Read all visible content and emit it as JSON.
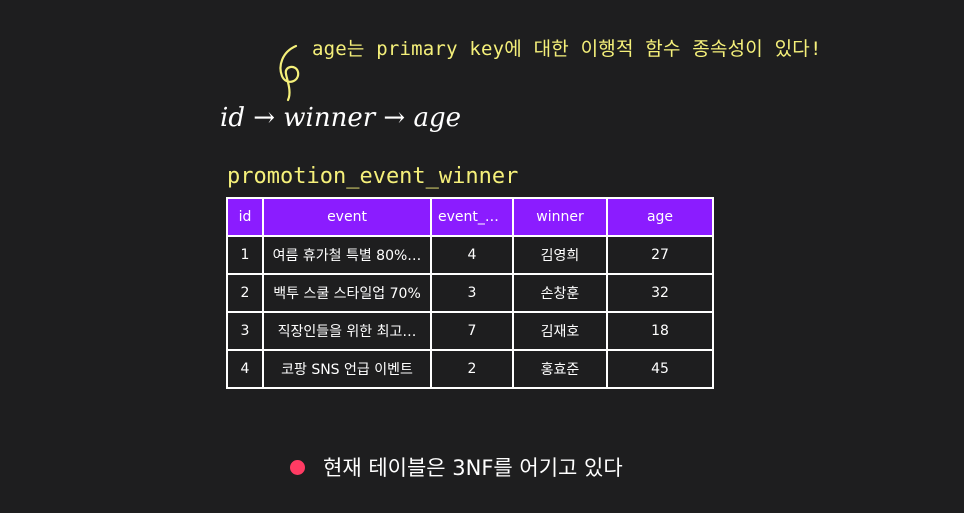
{
  "annotation": {
    "text": "age는 primary key에 대한 이행적 함수 종속성이 있다!",
    "color": "#f5f07a"
  },
  "formula": "id → winner → age",
  "table": {
    "title": "promotion_event_winner",
    "header_color": "#8b1cff",
    "columns": [
      "id",
      "event",
      "event_num",
      "winner",
      "age"
    ],
    "rows": [
      [
        "1",
        "여름 휴가철 특별 80%…",
        "4",
        "김영희",
        "27"
      ],
      [
        "2",
        "백투 스쿨 스타일업 70%",
        "3",
        "손창훈",
        "32"
      ],
      [
        "3",
        "직장인들을 위한 최고…",
        "7",
        "김재호",
        "18"
      ],
      [
        "4",
        "코팡 SNS 언급 이벤트",
        "2",
        "홍효준",
        "45"
      ]
    ]
  },
  "note": {
    "text": "현재 테이블은 3NF를 어기고 있다",
    "bullet_color": "#ff3b63"
  }
}
